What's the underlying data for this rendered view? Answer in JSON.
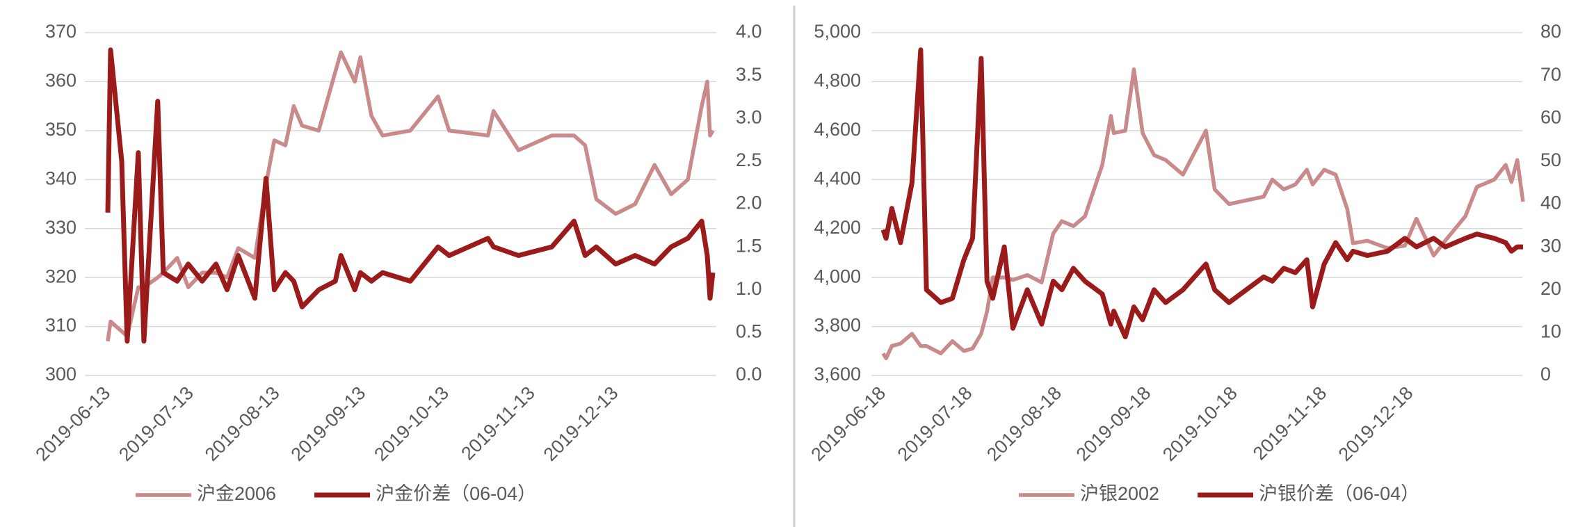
{
  "chart_data": [
    {
      "type": "line",
      "x": [
        "2019-06-13",
        "2019-06-14",
        "2019-06-18",
        "2019-06-20",
        "2019-06-24",
        "2019-06-26",
        "2019-07-01",
        "2019-07-03",
        "2019-07-08",
        "2019-07-12",
        "2019-07-17",
        "2019-07-22",
        "2019-07-26",
        "2019-07-30",
        "2019-08-05",
        "2019-08-09",
        "2019-08-12",
        "2019-08-16",
        "2019-08-19",
        "2019-08-22",
        "2019-08-28",
        "2019-09-03",
        "2019-09-05",
        "2019-09-10",
        "2019-09-12",
        "2019-09-16",
        "2019-09-20",
        "2019-09-30",
        "2019-10-10",
        "2019-10-14",
        "2019-10-28",
        "2019-10-30",
        "2019-11-08",
        "2019-11-20",
        "2019-11-28",
        "2019-12-02",
        "2019-12-06",
        "2019-12-13",
        "2019-12-20",
        "2019-12-27",
        "2020-01-02",
        "2020-01-08",
        "2020-01-13",
        "2020-01-15",
        "2020-01-16",
        "2020-01-17"
      ],
      "xlim": [
        "2019-06-13",
        "2020-01-17"
      ],
      "xticks": [
        "2019-06-13",
        "2019-07-13",
        "2019-08-13",
        "2019-09-13",
        "2019-10-13",
        "2019-11-13",
        "2019-12-13"
      ],
      "ylim": [
        300,
        370
      ],
      "yticks": [
        300,
        310,
        320,
        330,
        340,
        350,
        360,
        370
      ],
      "y2lim": [
        0,
        4
      ],
      "y2ticks": [
        {
          "value": 0,
          "label": "0.0"
        },
        0.5,
        {
          "value": 1,
          "label": "1.0"
        },
        1.5,
        {
          "value": 2,
          "label": "2.0"
        },
        2.5,
        {
          "value": 3,
          "label": "3.0"
        },
        3.5,
        {
          "value": 4,
          "label": "4.0"
        }
      ],
      "grid": true,
      "legend": "bottom",
      "series": [
        {
          "name": "沪金2006",
          "color": "#c98a8c",
          "values": [
            307,
            311,
            309,
            308,
            318,
            318,
            320,
            321,
            324,
            318,
            321,
            321,
            320,
            326,
            324,
            339,
            348,
            347,
            355,
            351,
            350,
            362,
            366,
            360,
            365,
            353,
            349,
            350,
            357,
            350,
            349,
            354,
            346,
            349,
            349,
            347,
            336,
            333,
            335,
            343,
            337,
            340,
            355,
            360,
            349,
            350
          ]
        },
        {
          "name": "沪金价差（06-04）",
          "color": "#9b1b1b",
          "axis": "y2",
          "values": [
            1.9,
            3.8,
            2.5,
            0.4,
            2.6,
            0.4,
            3.2,
            1.2,
            1.1,
            1.3,
            1.1,
            1.3,
            1.0,
            1.4,
            0.9,
            2.3,
            1.0,
            1.2,
            1.1,
            0.8,
            1.0,
            1.1,
            1.4,
            1.0,
            1.2,
            1.1,
            1.2,
            1.1,
            1.5,
            1.4,
            1.6,
            1.5,
            1.4,
            1.5,
            1.8,
            1.4,
            1.5,
            1.3,
            1.4,
            1.3,
            1.5,
            1.6,
            1.8,
            1.4,
            0.9,
            1.2
          ]
        }
      ]
    },
    {
      "type": "line",
      "x": [
        "2019-06-18",
        "2019-06-19",
        "2019-06-21",
        "2019-06-24",
        "2019-06-28",
        "2019-07-01",
        "2019-07-03",
        "2019-07-08",
        "2019-07-12",
        "2019-07-16",
        "2019-07-19",
        "2019-07-22",
        "2019-07-24",
        "2019-07-26",
        "2019-07-30",
        "2019-08-02",
        "2019-08-07",
        "2019-08-12",
        "2019-08-16",
        "2019-08-19",
        "2019-08-23",
        "2019-08-27",
        "2019-09-02",
        "2019-09-05",
        "2019-09-06",
        "2019-09-10",
        "2019-09-13",
        "2019-09-16",
        "2019-09-20",
        "2019-09-24",
        "2019-09-30",
        "2019-10-08",
        "2019-10-11",
        "2019-10-16",
        "2019-10-28",
        "2019-10-31",
        "2019-11-04",
        "2019-11-08",
        "2019-11-12",
        "2019-11-14",
        "2019-11-18",
        "2019-11-22",
        "2019-11-26",
        "2019-11-28",
        "2019-12-03",
        "2019-12-10",
        "2019-12-16",
        "2019-12-20",
        "2019-12-26",
        "2019-12-30",
        "2020-01-06",
        "2020-01-10",
        "2020-01-16",
        "2020-01-20",
        "2020-01-22",
        "2020-01-24",
        "2020-01-26"
      ],
      "xlim": [
        "2019-06-18",
        "2020-01-26"
      ],
      "xticks": [
        "2019-06-18",
        "2019-07-18",
        "2019-08-18",
        "2019-09-18",
        "2019-10-18",
        "2019-11-18",
        "2019-12-18"
      ],
      "ylim": [
        3600,
        5000
      ],
      "yticks": [
        {
          "value": 3600,
          "label": "3,600"
        },
        {
          "value": 3800,
          "label": "3,800"
        },
        {
          "value": 4000,
          "label": "4,000"
        },
        {
          "value": 4200,
          "label": "4,200"
        },
        {
          "value": 4400,
          "label": "4,400"
        },
        {
          "value": 4600,
          "label": "4,600"
        },
        {
          "value": 4800,
          "label": "4,800"
        },
        {
          "value": 5000,
          "label": "5,000"
        }
      ],
      "y2lim": [
        0,
        80
      ],
      "y2ticks": [
        0,
        10,
        20,
        30,
        40,
        50,
        60,
        70,
        80
      ],
      "grid": true,
      "legend": "bottom",
      "series": [
        {
          "name": "沪银2002",
          "color": "#c98a8c",
          "values": [
            3690,
            3670,
            3720,
            3730,
            3770,
            3720,
            3720,
            3690,
            3740,
            3700,
            3710,
            3770,
            3860,
            4000,
            4000,
            3990,
            4010,
            3980,
            4180,
            4230,
            4210,
            4250,
            4460,
            4660,
            4590,
            4600,
            4850,
            4590,
            4500,
            4480,
            4420,
            4600,
            4360,
            4300,
            4330,
            4400,
            4360,
            4380,
            4440,
            4380,
            4440,
            4420,
            4280,
            4140,
            4150,
            4120,
            4130,
            4240,
            4090,
            4150,
            4250,
            4370,
            4400,
            4460,
            4390,
            4480,
            4310
          ]
        },
        {
          "name": "沪银价差（06-04）",
          "color": "#9b1b1b",
          "axis": "y2",
          "values": [
            34,
            32,
            39,
            31,
            45,
            76,
            20,
            17,
            18,
            27,
            32,
            74,
            22,
            18,
            30,
            11,
            20,
            12,
            22,
            20,
            25,
            22,
            19,
            12,
            15,
            9,
            16,
            13,
            20,
            17,
            20,
            26,
            20,
            17,
            23,
            22,
            25,
            24,
            27,
            16,
            26,
            31,
            27,
            29,
            28,
            29,
            32,
            30,
            32,
            30,
            32,
            33,
            32,
            31,
            29,
            30,
            30
          ]
        }
      ]
    }
  ]
}
